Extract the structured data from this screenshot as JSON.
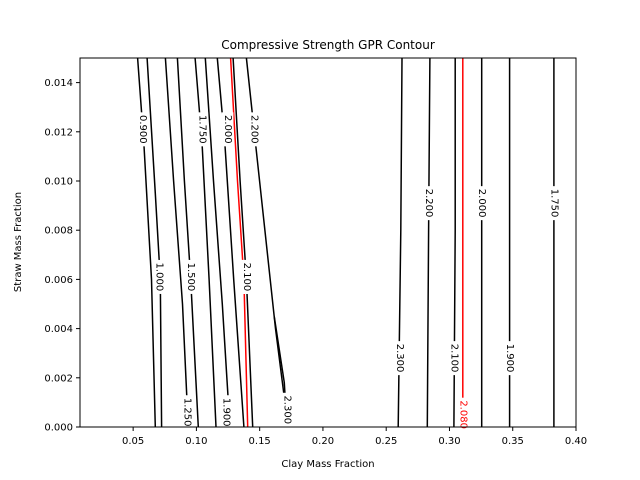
{
  "chart_data": {
    "type": "contour",
    "title": "Compressive Strength GPR Contour",
    "xlabel": "Clay Mass Fraction",
    "ylabel": "Straw Mass Fraction",
    "xlim": [
      0.008,
      0.4
    ],
    "ylim": [
      0.0,
      0.015
    ],
    "xticks": [
      0.05,
      0.1,
      0.15,
      0.2,
      0.25,
      0.3,
      0.35,
      0.4
    ],
    "xtick_labels": [
      "0.05",
      "0.10",
      "0.15",
      "0.20",
      "0.25",
      "0.30",
      "0.35",
      "0.40"
    ],
    "yticks": [
      0.0,
      0.002,
      0.004,
      0.006,
      0.008,
      0.01,
      0.012,
      0.014
    ],
    "ytick_labels": [
      "0.000",
      "0.002",
      "0.004",
      "0.006",
      "0.008",
      "0.010",
      "0.012",
      "0.014"
    ],
    "grid": false,
    "contours": [
      {
        "level": "0.900",
        "color": "#000000",
        "points": [
          [
            0.0535,
            0.015
          ],
          [
            0.0585,
            0.0115
          ],
          [
            0.0645,
            0.006
          ],
          [
            0.0675,
            0.0
          ]
        ],
        "label_at": [
          0.0575,
          0.0121
        ],
        "label_text": "0.900"
      },
      {
        "level": "1.000",
        "color": "#000000",
        "points": [
          [
            0.061,
            0.015
          ],
          [
            0.0675,
            0.0095
          ],
          [
            0.0715,
            0.006
          ],
          [
            0.0725,
            0.0
          ]
        ],
        "label_at": [
          0.0705,
          0.0061
        ],
        "label_text": "1.000"
      },
      {
        "level": "1.250",
        "color": "#000000",
        "points": [
          [
            0.0755,
            0.015
          ],
          [
            0.082,
            0.01
          ],
          [
            0.089,
            0.005
          ],
          [
            0.0935,
            0.0
          ]
        ],
        "label_at": [
          0.0925,
          0.0006
        ],
        "label_text": "1.250"
      },
      {
        "level": "1.500",
        "color": "#000000",
        "points": [
          [
            0.085,
            0.015
          ],
          [
            0.0905,
            0.01
          ],
          [
            0.0955,
            0.006
          ],
          [
            0.1015,
            0.0
          ]
        ],
        "label_at": [
          0.0955,
          0.0061
        ],
        "label_text": "1.500"
      },
      {
        "level": "1.750",
        "color": "#000000",
        "points": [
          [
            0.099,
            0.015
          ],
          [
            0.1045,
            0.0115
          ],
          [
            0.11,
            0.006
          ],
          [
            0.1155,
            0.0
          ]
        ],
        "label_at": [
          0.1045,
          0.0121
        ],
        "label_text": "1.750"
      },
      {
        "level": "1.900",
        "color": "#000000",
        "points": [
          [
            0.107,
            0.015
          ],
          [
            0.1135,
            0.01
          ],
          [
            0.1205,
            0.005
          ],
          [
            0.1265,
            0.0
          ]
        ],
        "label_at": [
          0.1235,
          0.0006
        ],
        "label_text": "1.900"
      },
      {
        "level": "2.000",
        "color": "#000000",
        "points": [
          [
            0.1165,
            0.015
          ],
          [
            0.1225,
            0.0115
          ],
          [
            0.1295,
            0.006
          ],
          [
            0.1375,
            0.0
          ]
        ],
        "label_at": [
          0.1245,
          0.0121
        ],
        "label_text": "2.000"
      },
      {
        "level": "2.080",
        "color": "#ff0000",
        "points": [
          [
            0.127,
            0.015
          ],
          [
            0.1325,
            0.01
          ],
          [
            0.1375,
            0.006
          ],
          [
            0.1405,
            0.0
          ]
        ],
        "label_at": [
          0.1375,
          0.0061
        ],
        "label_text": "2.080"
      },
      {
        "level": "2.100",
        "color": "#000000",
        "points": [
          [
            0.129,
            0.015
          ],
          [
            0.1345,
            0.01
          ],
          [
            0.1395,
            0.006
          ],
          [
            0.1445,
            0.0
          ]
        ],
        "label_at": [
          0.1395,
          0.0061
        ],
        "label_text": "2.100"
      },
      {
        "level": "2.200",
        "color": "#000000",
        "points": [
          [
            0.1395,
            0.015
          ],
          [
            0.1455,
            0.0121
          ],
          [
            0.1625,
            0.004
          ],
          [
            0.1725,
            0.0
          ]
        ],
        "label_at": [
          0.1455,
          0.0121
        ],
        "label_text": "2.200"
      },
      {
        "level": "2.300",
        "color": "#000000",
        "points": [
          [
            0.1615,
            0.0045
          ],
          [
            0.1695,
            0.0018
          ],
          [
            0.1715,
            0.0
          ]
        ],
        "label_at": [
          0.1715,
          0.0007
        ],
        "label_text": "2.300"
      },
      {
        "level": "2.300",
        "color": "#000000",
        "points": [
          [
            0.2625,
            0.015
          ],
          [
            0.2615,
            0.008
          ],
          [
            0.2595,
            0.0
          ]
        ],
        "label_at": [
          0.2605,
          0.0028
        ],
        "label_text": "2.300"
      },
      {
        "level": "2.200",
        "color": "#000000",
        "points": [
          [
            0.2845,
            0.015
          ],
          [
            0.2835,
            0.008
          ],
          [
            0.2825,
            0.0
          ]
        ],
        "label_at": [
          0.2835,
          0.0091
        ],
        "label_text": "2.200"
      },
      {
        "level": "2.100",
        "color": "#000000",
        "points": [
          [
            0.3045,
            0.015
          ],
          [
            0.3045,
            0.008
          ],
          [
            0.3035,
            0.0
          ]
        ],
        "label_at": [
          0.3035,
          0.0028
        ],
        "label_text": "2.100"
      },
      {
        "level": "2.080",
        "color": "#ff0000",
        "points": [
          [
            0.3105,
            0.015
          ],
          [
            0.3105,
            0.007
          ],
          [
            0.3105,
            0.0008
          ]
        ],
        "label_at": [
          0.3105,
          0.0005
        ],
        "label_text": "2.080"
      },
      {
        "level": "2.000",
        "color": "#000000",
        "points": [
          [
            0.3255,
            0.015
          ],
          [
            0.3255,
            0.008
          ],
          [
            0.3255,
            0.0
          ]
        ],
        "label_at": [
          0.3255,
          0.0091
        ],
        "label_text": "2.000"
      },
      {
        "level": "1.900",
        "color": "#000000",
        "points": [
          [
            0.3475,
            0.015
          ],
          [
            0.3475,
            0.008
          ],
          [
            0.3475,
            0.0
          ]
        ],
        "label_at": [
          0.3475,
          0.0028
        ],
        "label_text": "1.900"
      },
      {
        "level": "1.750",
        "color": "#000000",
        "points": [
          [
            0.3825,
            0.015
          ],
          [
            0.3825,
            0.008
          ],
          [
            0.3825,
            0.0
          ]
        ],
        "label_at": [
          0.3825,
          0.0091
        ],
        "label_text": "1.750"
      }
    ]
  }
}
